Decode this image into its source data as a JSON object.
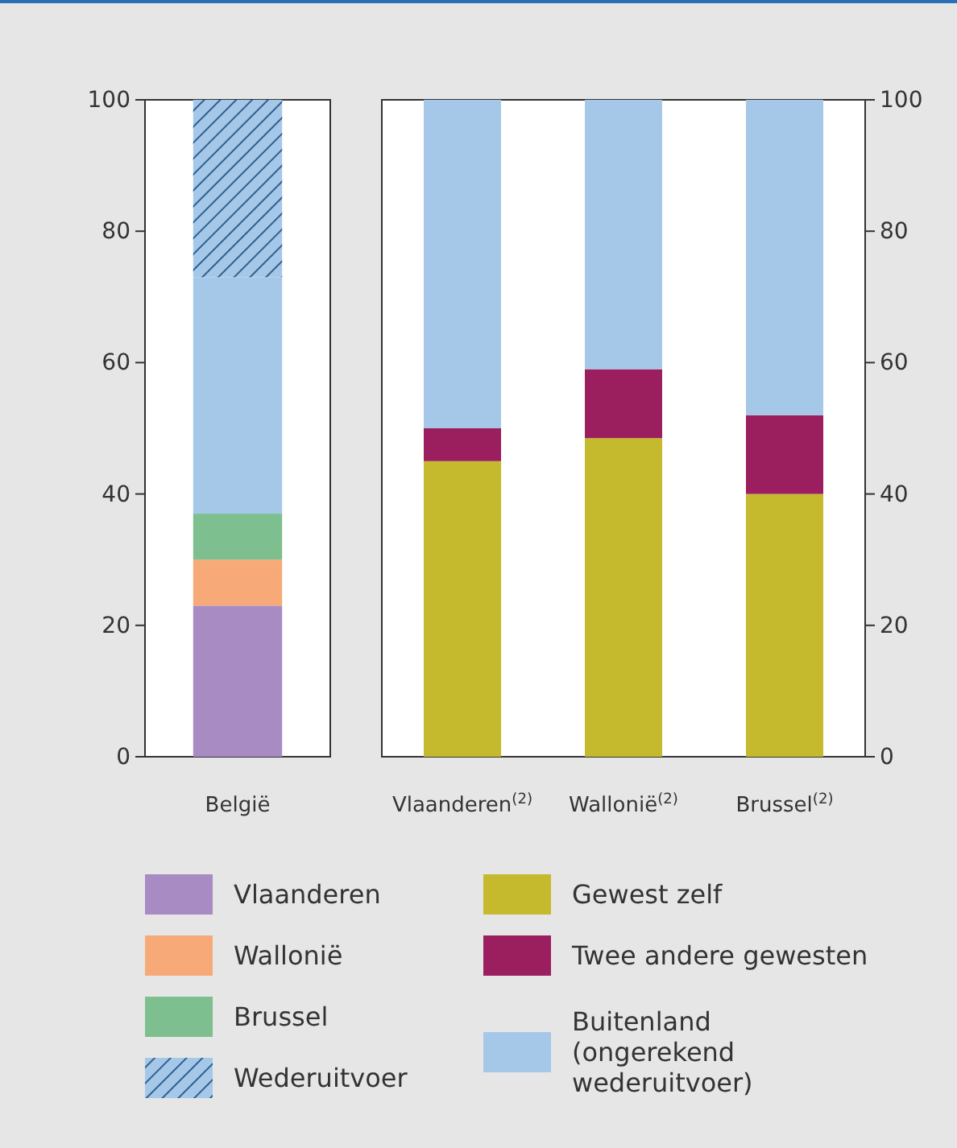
{
  "chart_data": [
    {
      "type": "bar",
      "stacked": true,
      "categories": [
        "België"
      ],
      "ylim": [
        0,
        100
      ],
      "yticks": [
        0,
        20,
        40,
        60,
        80,
        100
      ],
      "legend": "bottom",
      "grid": false,
      "series": [
        {
          "name": "Vlaanderen",
          "color": "#a98bc4",
          "values": [
            23
          ]
        },
        {
          "name": "Wallonië",
          "color": "#f7aa78",
          "values": [
            7
          ]
        },
        {
          "name": "Brussel",
          "color": "#7dbf8f",
          "values": [
            7
          ]
        },
        {
          "color": "#a6c8e8",
          "values": [
            36
          ]
        },
        {
          "name": "Wederuitvoer",
          "color": "#a6c8e8",
          "values": [
            27
          ]
        }
      ]
    },
    {
      "type": "bar",
      "stacked": true,
      "categories": [
        "Vlaanderen$^{(2)}$",
        "Wallonië$^{(2)}$",
        "Brussel$^{(2)}$"
      ],
      "y2lim": [
        0,
        100
      ],
      "y2ticks": [
        0,
        20,
        40,
        60,
        80,
        100
      ],
      "legend": "bottom",
      "grid": false,
      "series": [
        {
          "name": "Gewest zelf",
          "color": "#c5b92d",
          "axis": "y2",
          "values": [
            45,
            48.5,
            40
          ]
        },
        {
          "name": "Twee andere gewesten",
          "color": "#9b1f5e",
          "axis": "y2",
          "values": [
            5,
            10.5,
            12
          ]
        },
        {
          "name": "Buitenland (ongerekend wederuitvoer)",
          "color": "#a6c8e8",
          "axis": "y2",
          "values": [
            50,
            41,
            48
          ]
        }
      ]
    }
  ]
}
